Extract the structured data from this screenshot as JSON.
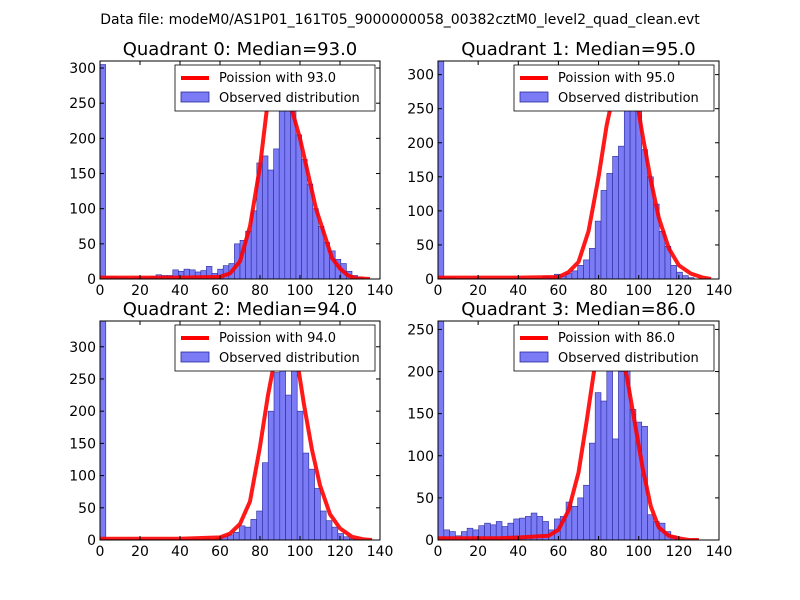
{
  "figure": {
    "suptitle": "Data file: modeM0/AS1P01_161T05_9000000058_00382cztM0_level2_quad_clean.evt"
  },
  "colors": {
    "bar_fill": "#7b7bf5",
    "bar_edge": "#2b2b9a",
    "poisson_line": "#ff0000"
  },
  "chart_data": [
    {
      "type": "bar",
      "title": "Quadrant 0: Median=93.0",
      "legend_poisson": "Poission with 93.0",
      "legend_observed": "Observed distribution",
      "legend_position": "top-right",
      "xlim": [
        0,
        140
      ],
      "ylim": [
        0,
        310
      ],
      "xticks": [
        0,
        20,
        40,
        60,
        80,
        100,
        120,
        140
      ],
      "yticks": [
        0,
        50,
        100,
        150,
        200,
        250,
        300
      ],
      "bin_width": 2.8,
      "bars": [
        [
          0,
          305
        ],
        [
          2.8,
          3
        ],
        [
          5.6,
          3
        ],
        [
          8.4,
          2
        ],
        [
          11.2,
          2
        ],
        [
          14,
          1
        ],
        [
          16.8,
          2
        ],
        [
          19.6,
          2
        ],
        [
          22.4,
          2
        ],
        [
          25.2,
          3
        ],
        [
          28,
          6
        ],
        [
          30.8,
          5
        ],
        [
          33.6,
          5
        ],
        [
          36.4,
          13
        ],
        [
          39.2,
          11
        ],
        [
          42,
          14
        ],
        [
          44.8,
          13
        ],
        [
          47.6,
          10
        ],
        [
          50.4,
          12
        ],
        [
          53.2,
          18
        ],
        [
          56,
          8
        ],
        [
          58.8,
          14
        ],
        [
          61.6,
          19
        ],
        [
          64.4,
          22
        ],
        [
          67.2,
          50
        ],
        [
          70,
          55
        ],
        [
          72.8,
          68
        ],
        [
          75.6,
          97
        ],
        [
          78.4,
          165
        ],
        [
          81.2,
          175
        ],
        [
          84,
          155
        ],
        [
          86.8,
          185
        ],
        [
          89.6,
          270
        ],
        [
          92.4,
          295
        ],
        [
          95.2,
          245
        ],
        [
          98,
          205
        ],
        [
          100.8,
          170
        ],
        [
          103.6,
          135
        ],
        [
          106.4,
          100
        ],
        [
          109.2,
          75
        ],
        [
          112,
          52
        ],
        [
          114.8,
          40
        ],
        [
          117.6,
          28
        ],
        [
          120.4,
          22
        ],
        [
          123.2,
          11
        ],
        [
          126,
          5
        ],
        [
          128.8,
          3
        ]
      ],
      "poisson_x": [
        0,
        40,
        60,
        65,
        70,
        75,
        80,
        84,
        88,
        92,
        96,
        100,
        104,
        108,
        112,
        116,
        120,
        124,
        128,
        135
      ],
      "poisson_y": [
        2,
        2,
        3,
        8,
        25,
        75,
        160,
        255,
        300,
        282,
        240,
        200,
        150,
        100,
        65,
        30,
        15,
        5,
        1,
        0
      ]
    },
    {
      "type": "bar",
      "title": "Quadrant 1: Median=95.0",
      "legend_poisson": "Poission with 95.0",
      "legend_observed": "Observed distribution",
      "legend_position": "top-right",
      "xlim": [
        0,
        140
      ],
      "ylim": [
        0,
        320
      ],
      "xticks": [
        0,
        20,
        40,
        60,
        80,
        100,
        120,
        140
      ],
      "yticks": [
        0,
        50,
        100,
        150,
        200,
        250,
        300
      ],
      "bin_width": 2.9,
      "bars": [
        [
          0,
          320
        ],
        [
          2.9,
          2
        ],
        [
          5.8,
          2
        ],
        [
          8.7,
          1
        ],
        [
          11.6,
          1
        ],
        [
          14.5,
          1
        ],
        [
          17.4,
          1
        ],
        [
          20.3,
          1
        ],
        [
          23.2,
          1
        ],
        [
          26.1,
          1
        ],
        [
          29,
          1
        ],
        [
          31.9,
          1
        ],
        [
          34.8,
          1
        ],
        [
          37.7,
          1
        ],
        [
          40.6,
          1
        ],
        [
          43.5,
          1
        ],
        [
          46.4,
          1
        ],
        [
          49.3,
          1
        ],
        [
          52.2,
          4
        ],
        [
          55.1,
          3
        ],
        [
          58,
          7
        ],
        [
          60.9,
          4
        ],
        [
          63.8,
          8
        ],
        [
          66.7,
          12
        ],
        [
          69.6,
          20
        ],
        [
          72.5,
          28
        ],
        [
          75.4,
          45
        ],
        [
          78.3,
          85
        ],
        [
          81.2,
          130
        ],
        [
          84.1,
          155
        ],
        [
          87,
          180
        ],
        [
          89.9,
          195
        ],
        [
          92.8,
          265
        ],
        [
          95.7,
          260
        ],
        [
          98.6,
          250
        ],
        [
          101.5,
          190
        ],
        [
          104.4,
          150
        ],
        [
          107.3,
          110
        ],
        [
          110.2,
          70
        ],
        [
          113.1,
          48
        ],
        [
          116,
          20
        ],
        [
          118.9,
          10
        ],
        [
          121.8,
          5
        ],
        [
          124.7,
          2
        ]
      ],
      "poisson_x": [
        0,
        40,
        60,
        65,
        70,
        75,
        80,
        84,
        88,
        92,
        95,
        98,
        102,
        106,
        110,
        115,
        120,
        126,
        132,
        136
      ],
      "poisson_y": [
        2,
        2,
        3,
        10,
        25,
        70,
        150,
        225,
        280,
        305,
        300,
        280,
        210,
        145,
        90,
        45,
        20,
        8,
        2,
        0
      ]
    },
    {
      "type": "bar",
      "title": "Quadrant 2: Median=94.0",
      "legend_poisson": "Poission with 94.0",
      "legend_observed": "Observed distribution",
      "legend_position": "top-right",
      "xlim": [
        0,
        140
      ],
      "ylim": [
        0,
        340
      ],
      "xticks": [
        0,
        20,
        40,
        60,
        80,
        100,
        120,
        140
      ],
      "yticks": [
        0,
        50,
        100,
        150,
        200,
        250,
        300
      ],
      "bin_width": 2.9,
      "bars": [
        [
          0,
          340
        ],
        [
          2.9,
          1
        ],
        [
          5.8,
          1
        ],
        [
          8.7,
          1
        ],
        [
          11.6,
          1
        ],
        [
          14.5,
          1
        ],
        [
          17.4,
          1
        ],
        [
          20.3,
          1
        ],
        [
          23.2,
          1
        ],
        [
          26.1,
          1
        ],
        [
          29,
          1
        ],
        [
          31.9,
          1
        ],
        [
          34.8,
          1
        ],
        [
          37.7,
          1
        ],
        [
          40.6,
          1
        ],
        [
          43.5,
          1
        ],
        [
          46.4,
          2
        ],
        [
          49.3,
          1
        ],
        [
          52.2,
          2
        ],
        [
          55.1,
          1
        ],
        [
          58,
          3
        ],
        [
          60.9,
          5
        ],
        [
          63.8,
          8
        ],
        [
          66.7,
          12
        ],
        [
          69.6,
          22
        ],
        [
          72.5,
          20
        ],
        [
          75.4,
          32
        ],
        [
          78.3,
          45
        ],
        [
          81.2,
          120
        ],
        [
          84.1,
          200
        ],
        [
          87,
          260
        ],
        [
          89.9,
          300
        ],
        [
          92.8,
          225
        ],
        [
          95.7,
          270
        ],
        [
          98.6,
          200
        ],
        [
          101.5,
          135
        ],
        [
          104.4,
          110
        ],
        [
          107.3,
          80
        ],
        [
          110.2,
          45
        ],
        [
          113.1,
          30
        ],
        [
          116,
          20
        ],
        [
          118.9,
          10
        ],
        [
          121.8,
          5
        ],
        [
          124.7,
          2
        ]
      ],
      "poisson_x": [
        0,
        40,
        60,
        65,
        70,
        75,
        80,
        84,
        88,
        92,
        95,
        98,
        102,
        106,
        110,
        115,
        120,
        126,
        132,
        136
      ],
      "poisson_y": [
        2,
        2,
        4,
        10,
        25,
        60,
        145,
        225,
        290,
        325,
        325,
        290,
        210,
        140,
        85,
        40,
        18,
        5,
        1,
        0
      ]
    },
    {
      "type": "bar",
      "title": "Quadrant 3: Median=86.0",
      "legend_poisson": "Poission with 86.0",
      "legend_observed": "Observed distribution",
      "legend_position": "top-right",
      "xlim": [
        0,
        140
      ],
      "ylim": [
        0,
        260
      ],
      "xticks": [
        0,
        20,
        40,
        60,
        80,
        100,
        120,
        140
      ],
      "yticks": [
        0,
        50,
        100,
        150,
        200,
        250
      ],
      "bin_width": 2.9,
      "bars": [
        [
          0,
          260
        ],
        [
          2.9,
          12
        ],
        [
          5.8,
          10
        ],
        [
          8.7,
          5
        ],
        [
          11.6,
          10
        ],
        [
          14.5,
          14
        ],
        [
          17.4,
          12
        ],
        [
          20.3,
          17
        ],
        [
          23.2,
          20
        ],
        [
          26.1,
          18
        ],
        [
          29,
          22
        ],
        [
          31.9,
          16
        ],
        [
          34.8,
          20
        ],
        [
          37.7,
          25
        ],
        [
          40.6,
          26
        ],
        [
          43.5,
          28
        ],
        [
          46.4,
          32
        ],
        [
          49.3,
          28
        ],
        [
          52.2,
          22
        ],
        [
          55.1,
          12
        ],
        [
          58,
          25
        ],
        [
          60.9,
          28
        ],
        [
          63.8,
          45
        ],
        [
          66.7,
          40
        ],
        [
          69.6,
          50
        ],
        [
          72.5,
          65
        ],
        [
          75.4,
          115
        ],
        [
          78.3,
          175
        ],
        [
          81.2,
          165
        ],
        [
          84.1,
          250
        ],
        [
          87,
          120
        ],
        [
          89.9,
          200
        ],
        [
          92.8,
          225
        ],
        [
          95.7,
          155
        ],
        [
          98.6,
          140
        ],
        [
          101.5,
          135
        ],
        [
          104.4,
          30
        ],
        [
          107.3,
          22
        ],
        [
          110.2,
          20
        ],
        [
          113.1,
          10
        ],
        [
          116,
          5
        ]
      ],
      "poisson_x": [
        0,
        30,
        40,
        55,
        60,
        65,
        70,
        74,
        78,
        82,
        86,
        90,
        94,
        98,
        102,
        106,
        110,
        115,
        120,
        125,
        130
      ],
      "poisson_y": [
        2,
        2,
        3,
        5,
        12,
        35,
        80,
        140,
        205,
        235,
        245,
        235,
        195,
        140,
        85,
        40,
        15,
        5,
        2,
        0,
        0
      ]
    }
  ]
}
